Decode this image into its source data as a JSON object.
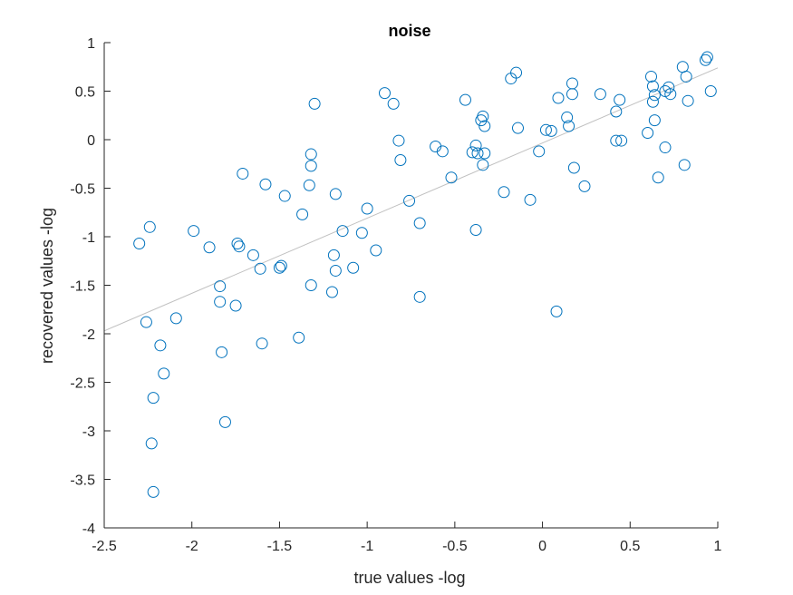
{
  "chart_data": {
    "type": "scatter",
    "title": "noise",
    "xlabel": "true values -log",
    "ylabel": "recovered values -log",
    "xlim": [
      -2.5,
      1
    ],
    "ylim": [
      -4,
      1
    ],
    "xticks": [
      "-2.5",
      "-2",
      "-1.5",
      "-1",
      "-0.5",
      "0",
      "0.5",
      "1"
    ],
    "yticks": [
      "1",
      "0.5",
      "0",
      "-0.5",
      "-1",
      "-1.5",
      "-2",
      "-2.5",
      "-3",
      "-3.5",
      "-4"
    ],
    "grid": false,
    "marker_color": "#0072bd",
    "fit_line_color": "#c0c0c0",
    "fit_line": {
      "x": [
        -2.5,
        1.0
      ],
      "y": [
        -1.97,
        0.74
      ]
    },
    "series": [
      {
        "marker": "open-circle",
        "x": [
          -2.3,
          -2.26,
          -2.24,
          -2.23,
          -2.22,
          -2.22,
          -2.18,
          -2.16,
          -2.09,
          -1.99,
          -1.9,
          -1.84,
          -1.84,
          -1.83,
          -1.81,
          -1.75,
          -1.74,
          -1.73,
          -1.71,
          -1.65,
          -1.61,
          -1.6,
          -1.58,
          -1.5,
          -1.49,
          -1.47,
          -1.39,
          -1.37,
          -1.33,
          -1.32,
          -1.32,
          -1.32,
          -1.3,
          -1.2,
          -1.19,
          -1.18,
          -1.18,
          -1.14,
          -1.08,
          -1.03,
          -1.0,
          -0.95,
          -0.9,
          -0.85,
          -0.82,
          -0.81,
          -0.76,
          -0.7,
          -0.7,
          -0.61,
          -0.57,
          -0.52,
          -0.44,
          -0.4,
          -0.38,
          -0.38,
          -0.37,
          -0.35,
          -0.34,
          -0.34,
          -0.33,
          -0.33,
          -0.22,
          -0.18,
          -0.15,
          -0.14,
          -0.07,
          -0.02,
          0.02,
          0.05,
          0.08,
          0.09,
          0.14,
          0.15,
          0.17,
          0.17,
          0.18,
          0.24,
          0.33,
          0.42,
          0.42,
          0.44,
          0.45,
          0.6,
          0.62,
          0.63,
          0.63,
          0.64,
          0.64,
          0.66,
          0.7,
          0.7,
          0.72,
          0.73,
          0.8,
          0.81,
          0.82,
          0.83,
          0.93,
          0.94,
          0.96
        ],
        "y": [
          -1.07,
          -1.88,
          -0.9,
          -3.13,
          -3.63,
          -2.66,
          -2.12,
          -2.41,
          -1.84,
          -0.94,
          -1.11,
          -1.51,
          -1.67,
          -2.19,
          -2.91,
          -1.71,
          -1.07,
          -1.1,
          -0.35,
          -1.19,
          -1.33,
          -2.1,
          -0.46,
          -1.32,
          -1.3,
          -0.58,
          -2.04,
          -0.77,
          -0.47,
          -0.27,
          -0.15,
          -1.5,
          0.37,
          -1.57,
          -1.19,
          -0.56,
          -1.35,
          -0.94,
          -1.32,
          -0.96,
          -0.71,
          -1.14,
          0.48,
          0.37,
          -0.01,
          -0.21,
          -0.63,
          -0.86,
          -1.62,
          -0.07,
          -0.12,
          -0.39,
          0.41,
          -0.13,
          -0.06,
          -0.93,
          -0.14,
          0.2,
          0.24,
          -0.26,
          0.14,
          -0.14,
          -0.54,
          0.63,
          0.69,
          0.12,
          -0.62,
          -0.12,
          0.1,
          0.09,
          -1.77,
          0.43,
          0.23,
          0.14,
          0.58,
          0.47,
          -0.29,
          -0.48,
          0.47,
          0.29,
          -0.01,
          0.41,
          -0.01,
          0.07,
          0.65,
          0.39,
          0.55,
          0.2,
          0.46,
          -0.39,
          -0.08,
          0.5,
          0.54,
          0.47,
          0.75,
          -0.26,
          0.65,
          0.4,
          0.82,
          0.85,
          0.5
        ]
      }
    ]
  }
}
